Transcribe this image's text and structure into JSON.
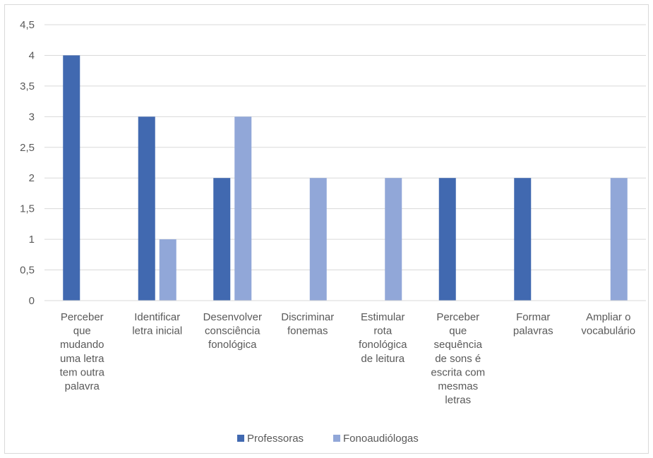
{
  "chart_data": {
    "type": "bar",
    "categories": [
      [
        "Perceber",
        "que",
        "mudando",
        "uma letra",
        "tem outra",
        "palavra"
      ],
      [
        "Identificar",
        "letra inicial"
      ],
      [
        "Desenvolver",
        "consciência",
        "fonológica"
      ],
      [
        "Discriminar",
        "fonemas"
      ],
      [
        "Estimular",
        "rota",
        "fonológica",
        "de leitura"
      ],
      [
        "Perceber",
        "que",
        "sequência",
        "de sons é",
        "escrita com",
        "mesmas",
        "letras"
      ],
      [
        "Formar",
        "palavras"
      ],
      [
        "Ampliar o",
        "vocabulário"
      ]
    ],
    "series": [
      {
        "name": "Professoras",
        "color": "#4169B0",
        "values": [
          4,
          3,
          2,
          0,
          0,
          2,
          2,
          0
        ]
      },
      {
        "name": "Fonoaudiólogas",
        "color": "#91A7D8",
        "values": [
          0,
          1,
          3,
          2,
          2,
          0,
          0,
          2
        ]
      }
    ],
    "ylim": [
      0,
      4.5
    ],
    "yticks": [
      "0",
      "0,5",
      "1",
      "1,5",
      "2",
      "2,5",
      "3",
      "3,5",
      "4",
      "4,5"
    ],
    "grid": true,
    "legend": "bottom"
  }
}
